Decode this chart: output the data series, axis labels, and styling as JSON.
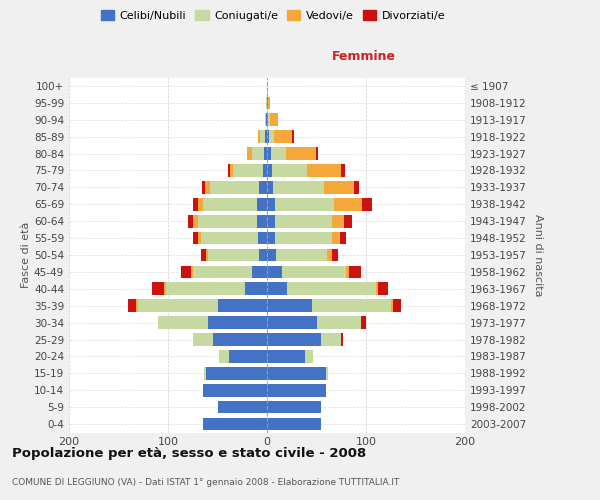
{
  "age_groups": [
    "0-4",
    "5-9",
    "10-14",
    "15-19",
    "20-24",
    "25-29",
    "30-34",
    "35-39",
    "40-44",
    "45-49",
    "50-54",
    "55-59",
    "60-64",
    "65-69",
    "70-74",
    "75-79",
    "80-84",
    "85-89",
    "90-94",
    "95-99",
    "100+"
  ],
  "birth_years": [
    "2003-2007",
    "1998-2002",
    "1993-1997",
    "1988-1992",
    "1983-1987",
    "1978-1982",
    "1973-1977",
    "1968-1972",
    "1963-1967",
    "1958-1962",
    "1953-1957",
    "1948-1952",
    "1943-1947",
    "1938-1942",
    "1933-1937",
    "1928-1932",
    "1923-1927",
    "1918-1922",
    "1913-1917",
    "1908-1912",
    "≤ 1907"
  ],
  "male_celibinubili": [
    65,
    50,
    65,
    62,
    38,
    55,
    60,
    50,
    22,
    15,
    8,
    9,
    10,
    10,
    8,
    4,
    3,
    2,
    1,
    0,
    0
  ],
  "male_coniugati": [
    0,
    0,
    0,
    2,
    10,
    20,
    50,
    80,
    80,
    60,
    52,
    58,
    60,
    55,
    50,
    30,
    12,
    5,
    1,
    1,
    0
  ],
  "male_vedovi": [
    0,
    0,
    0,
    0,
    0,
    0,
    0,
    2,
    2,
    2,
    2,
    3,
    5,
    5,
    5,
    3,
    5,
    2,
    0,
    0,
    0
  ],
  "male_divorziati": [
    0,
    0,
    0,
    0,
    0,
    0,
    0,
    8,
    12,
    10,
    5,
    5,
    5,
    5,
    3,
    2,
    0,
    0,
    0,
    0,
    0
  ],
  "female_celibinubili": [
    55,
    55,
    60,
    60,
    38,
    55,
    50,
    45,
    20,
    15,
    9,
    8,
    8,
    8,
    6,
    5,
    4,
    2,
    1,
    1,
    0
  ],
  "female_coniugate": [
    0,
    0,
    0,
    2,
    8,
    20,
    45,
    80,
    90,
    65,
    52,
    58,
    58,
    60,
    52,
    35,
    15,
    5,
    2,
    0,
    0
  ],
  "female_vedove": [
    0,
    0,
    0,
    0,
    0,
    0,
    0,
    2,
    2,
    3,
    5,
    8,
    12,
    28,
    30,
    35,
    30,
    18,
    8,
    2,
    0
  ],
  "female_divorziate": [
    0,
    0,
    0,
    0,
    0,
    2,
    5,
    8,
    10,
    12,
    6,
    6,
    8,
    10,
    5,
    4,
    3,
    2,
    0,
    0,
    0
  ],
  "color_celibinubili": "#4472c4",
  "color_coniugati": "#c5d9a0",
  "color_vedovi": "#f4a83a",
  "color_divorziati": "#cc1111",
  "legend_labels": [
    "Celibi/Nubili",
    "Coniugati/e",
    "Vedovi/e",
    "Divorziati/e"
  ],
  "title": "Popolazione per età, sesso e stato civile - 2008",
  "subtitle": "COMUNE DI LEGGIUNO (VA) - Dati ISTAT 1° gennaio 2008 - Elaborazione TUTTITALIA.IT",
  "femmine_label": "Femmine",
  "ylabel_left": "Fasce di età",
  "ylabel_right": "Anni di nascita",
  "xlim": 200,
  "bg_color": "#f0f0f0",
  "plot_bg": "#ffffff"
}
